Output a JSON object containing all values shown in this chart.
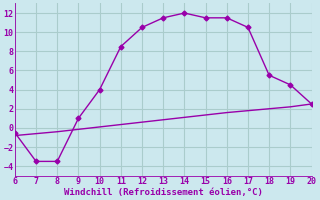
{
  "x": [
    6,
    7,
    8,
    9,
    10,
    11,
    12,
    13,
    14,
    15,
    16,
    17,
    18,
    19,
    20
  ],
  "y_main": [
    -0.5,
    -3.5,
    -3.5,
    1.0,
    4.0,
    8.5,
    10.5,
    11.5,
    12.0,
    11.5,
    11.5,
    10.5,
    5.5,
    4.5,
    2.5
  ],
  "y_line2": [
    -0.8,
    -0.6,
    -0.4,
    -0.15,
    0.1,
    0.35,
    0.6,
    0.85,
    1.1,
    1.35,
    1.6,
    1.8,
    2.0,
    2.2,
    2.5
  ],
  "line_color": "#9900aa",
  "bg_color": "#cce8ee",
  "grid_color": "#aacccc",
  "xlabel": "Windchill (Refroidissement éolien,°C)",
  "xlim": [
    6,
    20
  ],
  "ylim": [
    -5,
    13
  ],
  "xticks": [
    6,
    7,
    8,
    9,
    10,
    11,
    12,
    13,
    14,
    15,
    16,
    17,
    18,
    19,
    20
  ],
  "yticks": [
    -4,
    -2,
    0,
    2,
    4,
    6,
    8,
    10,
    12
  ],
  "marker": "D",
  "markersize": 2.5,
  "linewidth": 1.0,
  "xlabel_fontsize": 6.5,
  "tick_fontsize": 6,
  "title_fontsize": 7
}
